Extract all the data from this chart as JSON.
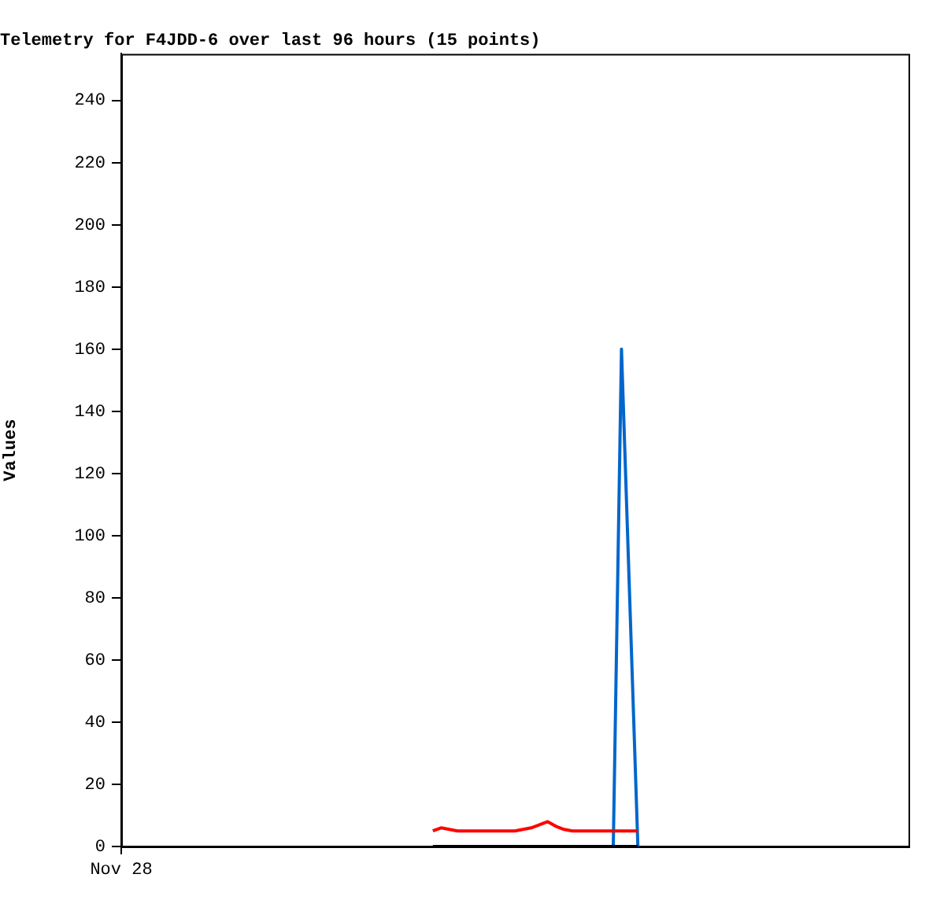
{
  "chart_data": {
    "type": "line",
    "title": "Telemetry for F4JDD-6 over last 96 hours (15 points)",
    "ylabel": "Values",
    "categories": [
      "Nov 28",
      null,
      null,
      null,
      null,
      null,
      null,
      null,
      null,
      null,
      null,
      null,
      null,
      null,
      null,
      null,
      null,
      null,
      null,
      null,
      null,
      null,
      null,
      null,
      null,
      null,
      null,
      null,
      null,
      null,
      null,
      null,
      null,
      null,
      null,
      null,
      null,
      null,
      null,
      null,
      null,
      null,
      null,
      null,
      null,
      null,
      null,
      null,
      null,
      null,
      null,
      null,
      null,
      null,
      null,
      null,
      null,
      null,
      null,
      null,
      null,
      null,
      null,
      null,
      null,
      null,
      null,
      null,
      null,
      null,
      null,
      null,
      null,
      null,
      null,
      null,
      null,
      null,
      null,
      null,
      null,
      null,
      null,
      null,
      null,
      null,
      null,
      null,
      null,
      null,
      null,
      null,
      null,
      null,
      null,
      null,
      null
    ],
    "ylim": [
      0,
      255
    ],
    "yticks": [
      0,
      20,
      40,
      60,
      80,
      100,
      120,
      140,
      160,
      180,
      200,
      220,
      240
    ],
    "grid": false,
    "legend": false,
    "marker": "none",
    "series": [
      {
        "color": "#000000",
        "values": [
          null,
          null,
          null,
          null,
          null,
          null,
          null,
          null,
          null,
          null,
          null,
          null,
          null,
          null,
          null,
          null,
          null,
          null,
          null,
          null,
          null,
          null,
          null,
          null,
          null,
          null,
          null,
          null,
          null,
          null,
          null,
          null,
          null,
          null,
          null,
          null,
          null,
          null,
          0,
          0,
          0,
          0,
          0,
          0,
          0,
          0,
          0,
          0,
          0,
          0,
          0,
          0,
          0,
          0,
          0,
          0,
          0,
          0,
          0,
          0,
          0,
          0,
          0,
          0,
          null,
          null,
          null,
          null,
          null,
          null,
          null,
          null,
          null,
          null,
          null,
          null,
          null,
          null,
          null,
          null,
          null,
          null,
          null,
          null,
          null,
          null,
          null,
          null,
          null,
          null,
          null,
          null,
          null,
          null,
          null,
          null,
          null
        ]
      },
      {
        "color": "#ff0000",
        "values": [
          null,
          null,
          null,
          null,
          null,
          null,
          null,
          null,
          null,
          null,
          null,
          null,
          null,
          null,
          null,
          null,
          null,
          null,
          null,
          null,
          null,
          null,
          null,
          null,
          null,
          null,
          null,
          null,
          null,
          null,
          null,
          null,
          null,
          null,
          null,
          null,
          null,
          null,
          5,
          6,
          5.5,
          5,
          5,
          5,
          5,
          5,
          5,
          5,
          5,
          5.5,
          6,
          7,
          8,
          6.5,
          5.5,
          5,
          5,
          5,
          5,
          5,
          5,
          5,
          5,
          5,
          null,
          null,
          null,
          null,
          null,
          null,
          null,
          null,
          null,
          null,
          null,
          null,
          null,
          null,
          null,
          null,
          null,
          null,
          null,
          null,
          null,
          null,
          null,
          null,
          null,
          null,
          null,
          null,
          null,
          null,
          null,
          null,
          null
        ]
      },
      {
        "color": "#0066cc",
        "values": [
          null,
          null,
          null,
          null,
          null,
          null,
          null,
          null,
          null,
          null,
          null,
          null,
          null,
          null,
          null,
          null,
          null,
          null,
          null,
          null,
          null,
          null,
          null,
          null,
          null,
          null,
          null,
          null,
          null,
          null,
          null,
          null,
          null,
          null,
          null,
          null,
          null,
          null,
          null,
          null,
          null,
          null,
          null,
          null,
          null,
          null,
          null,
          null,
          null,
          null,
          null,
          null,
          null,
          null,
          null,
          null,
          null,
          null,
          null,
          null,
          0,
          160,
          80,
          0,
          null,
          null,
          null,
          null,
          null,
          null,
          null,
          null,
          null,
          null,
          null,
          null,
          null,
          null,
          null,
          null,
          null,
          null,
          null,
          null,
          null,
          null,
          null,
          null,
          null,
          null,
          null,
          null,
          null,
          null,
          null,
          null,
          null
        ]
      }
    ]
  }
}
